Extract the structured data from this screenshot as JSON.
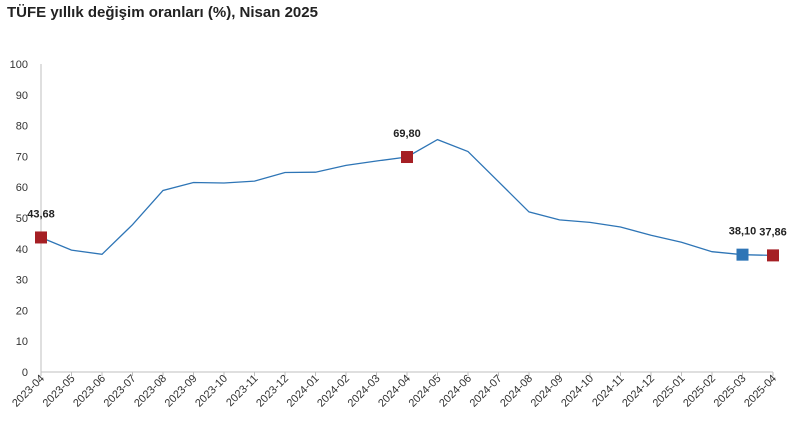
{
  "chart_data": {
    "type": "line",
    "title": "TÜFE yıllık değişim oranları (%), Nisan 2025",
    "xlabel": "",
    "ylabel": "",
    "ylim": [
      0,
      100
    ],
    "yticks": [
      0,
      10,
      20,
      30,
      40,
      50,
      60,
      70,
      80,
      90,
      100
    ],
    "grid": false,
    "categories": [
      "2023-04",
      "2023-05",
      "2023-06",
      "2023-07",
      "2023-08",
      "2023-09",
      "2023-10",
      "2023-11",
      "2023-12",
      "2024-01",
      "2024-02",
      "2024-03",
      "2024-04",
      "2024-05",
      "2024-06",
      "2024-07",
      "2024-08",
      "2024-09",
      "2024-10",
      "2024-11",
      "2024-12",
      "2025-01",
      "2025-02",
      "2025-03",
      "2025-04"
    ],
    "series": [
      {
        "values": [
          43.68,
          39.59,
          38.21,
          47.83,
          58.94,
          61.53,
          61.36,
          61.98,
          64.77,
          64.86,
          67.07,
          68.5,
          69.8,
          75.45,
          71.6,
          61.78,
          51.97,
          49.38,
          48.58,
          47.09,
          44.38,
          42.12,
          39.05,
          38.1,
          37.86
        ],
        "color": "#2e75b6"
      }
    ],
    "highlights": [
      {
        "index": 0,
        "label": "43,68",
        "color": "#a51f24"
      },
      {
        "index": 12,
        "label": "69,80",
        "color": "#a51f24"
      },
      {
        "index": 23,
        "label": "38,10",
        "color": "#2e75b6"
      },
      {
        "index": 24,
        "label": "37,86",
        "color": "#a51f24"
      }
    ]
  }
}
